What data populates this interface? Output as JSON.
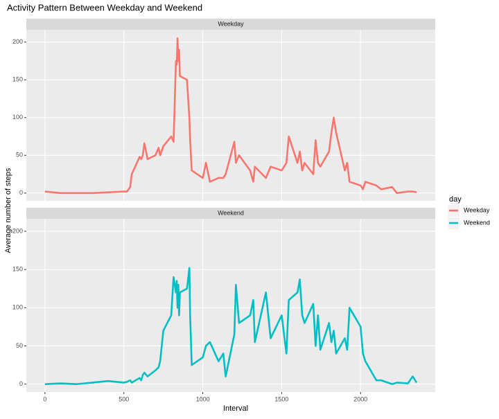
{
  "chart_data": {
    "type": "line",
    "title": "Activity Pattern Between Weekday and Weekend",
    "xlabel": "Interval",
    "ylabel": "Average number of steps",
    "legend_title": "day",
    "legend": "right",
    "grid": true,
    "x": [
      0,
      100,
      200,
      300,
      400,
      500,
      520,
      540,
      550,
      600,
      610,
      620,
      630,
      650,
      700,
      720,
      730,
      750,
      800,
      815,
      830,
      835,
      840,
      845,
      850,
      855,
      900,
      915,
      920,
      930,
      1000,
      1020,
      1045,
      1100,
      1130,
      1145,
      1200,
      1210,
      1230,
      1300,
      1320,
      1330,
      1400,
      1430,
      1500,
      1530,
      1545,
      1600,
      1615,
      1630,
      1645,
      1700,
      1715,
      1730,
      1745,
      1800,
      1815,
      1830,
      1845,
      1900,
      1915,
      1930,
      2000,
      2015,
      2030,
      2100,
      2130,
      2200,
      2230,
      2300,
      2330,
      2355
    ],
    "series": [
      {
        "name": "Weekday",
        "color": "#f8766d",
        "values": [
          2,
          0,
          0,
          0,
          1,
          2,
          2,
          8,
          25,
          48,
          45,
          50,
          66,
          45,
          50,
          60,
          50,
          62,
          75,
          68,
          175,
          170,
          205,
          175,
          190,
          155,
          150,
          100,
          70,
          30,
          20,
          40,
          15,
          20,
          20,
          25,
          68,
          40,
          50,
          30,
          15,
          35,
          20,
          35,
          30,
          40,
          75,
          40,
          55,
          30,
          40,
          25,
          70,
          40,
          35,
          55,
          80,
          100,
          80,
          30,
          40,
          15,
          10,
          5,
          15,
          10,
          5,
          8,
          0,
          2,
          2,
          1
        ]
      },
      {
        "name": "Weekend",
        "color": "#00bfc4",
        "values": [
          0,
          1,
          0,
          2,
          4,
          2,
          3,
          5,
          2,
          8,
          5,
          12,
          15,
          10,
          18,
          22,
          30,
          70,
          90,
          140,
          120,
          135,
          100,
          130,
          90,
          120,
          125,
          152,
          90,
          25,
          35,
          50,
          55,
          30,
          40,
          10,
          65,
          130,
          80,
          90,
          110,
          55,
          120,
          60,
          90,
          40,
          110,
          120,
          137,
          90,
          80,
          105,
          50,
          90,
          45,
          80,
          55,
          70,
          40,
          60,
          45,
          100,
          75,
          40,
          30,
          5,
          5,
          0,
          2,
          1,
          10,
          2
        ]
      }
    ],
    "xlim": [
      -118,
      2473
    ],
    "xticks": [
      0,
      500,
      1000,
      1500,
      2000
    ],
    "ylim": [
      -10.3,
      216.3
    ],
    "yticks": [
      0,
      50,
      100,
      150,
      200
    ]
  }
}
